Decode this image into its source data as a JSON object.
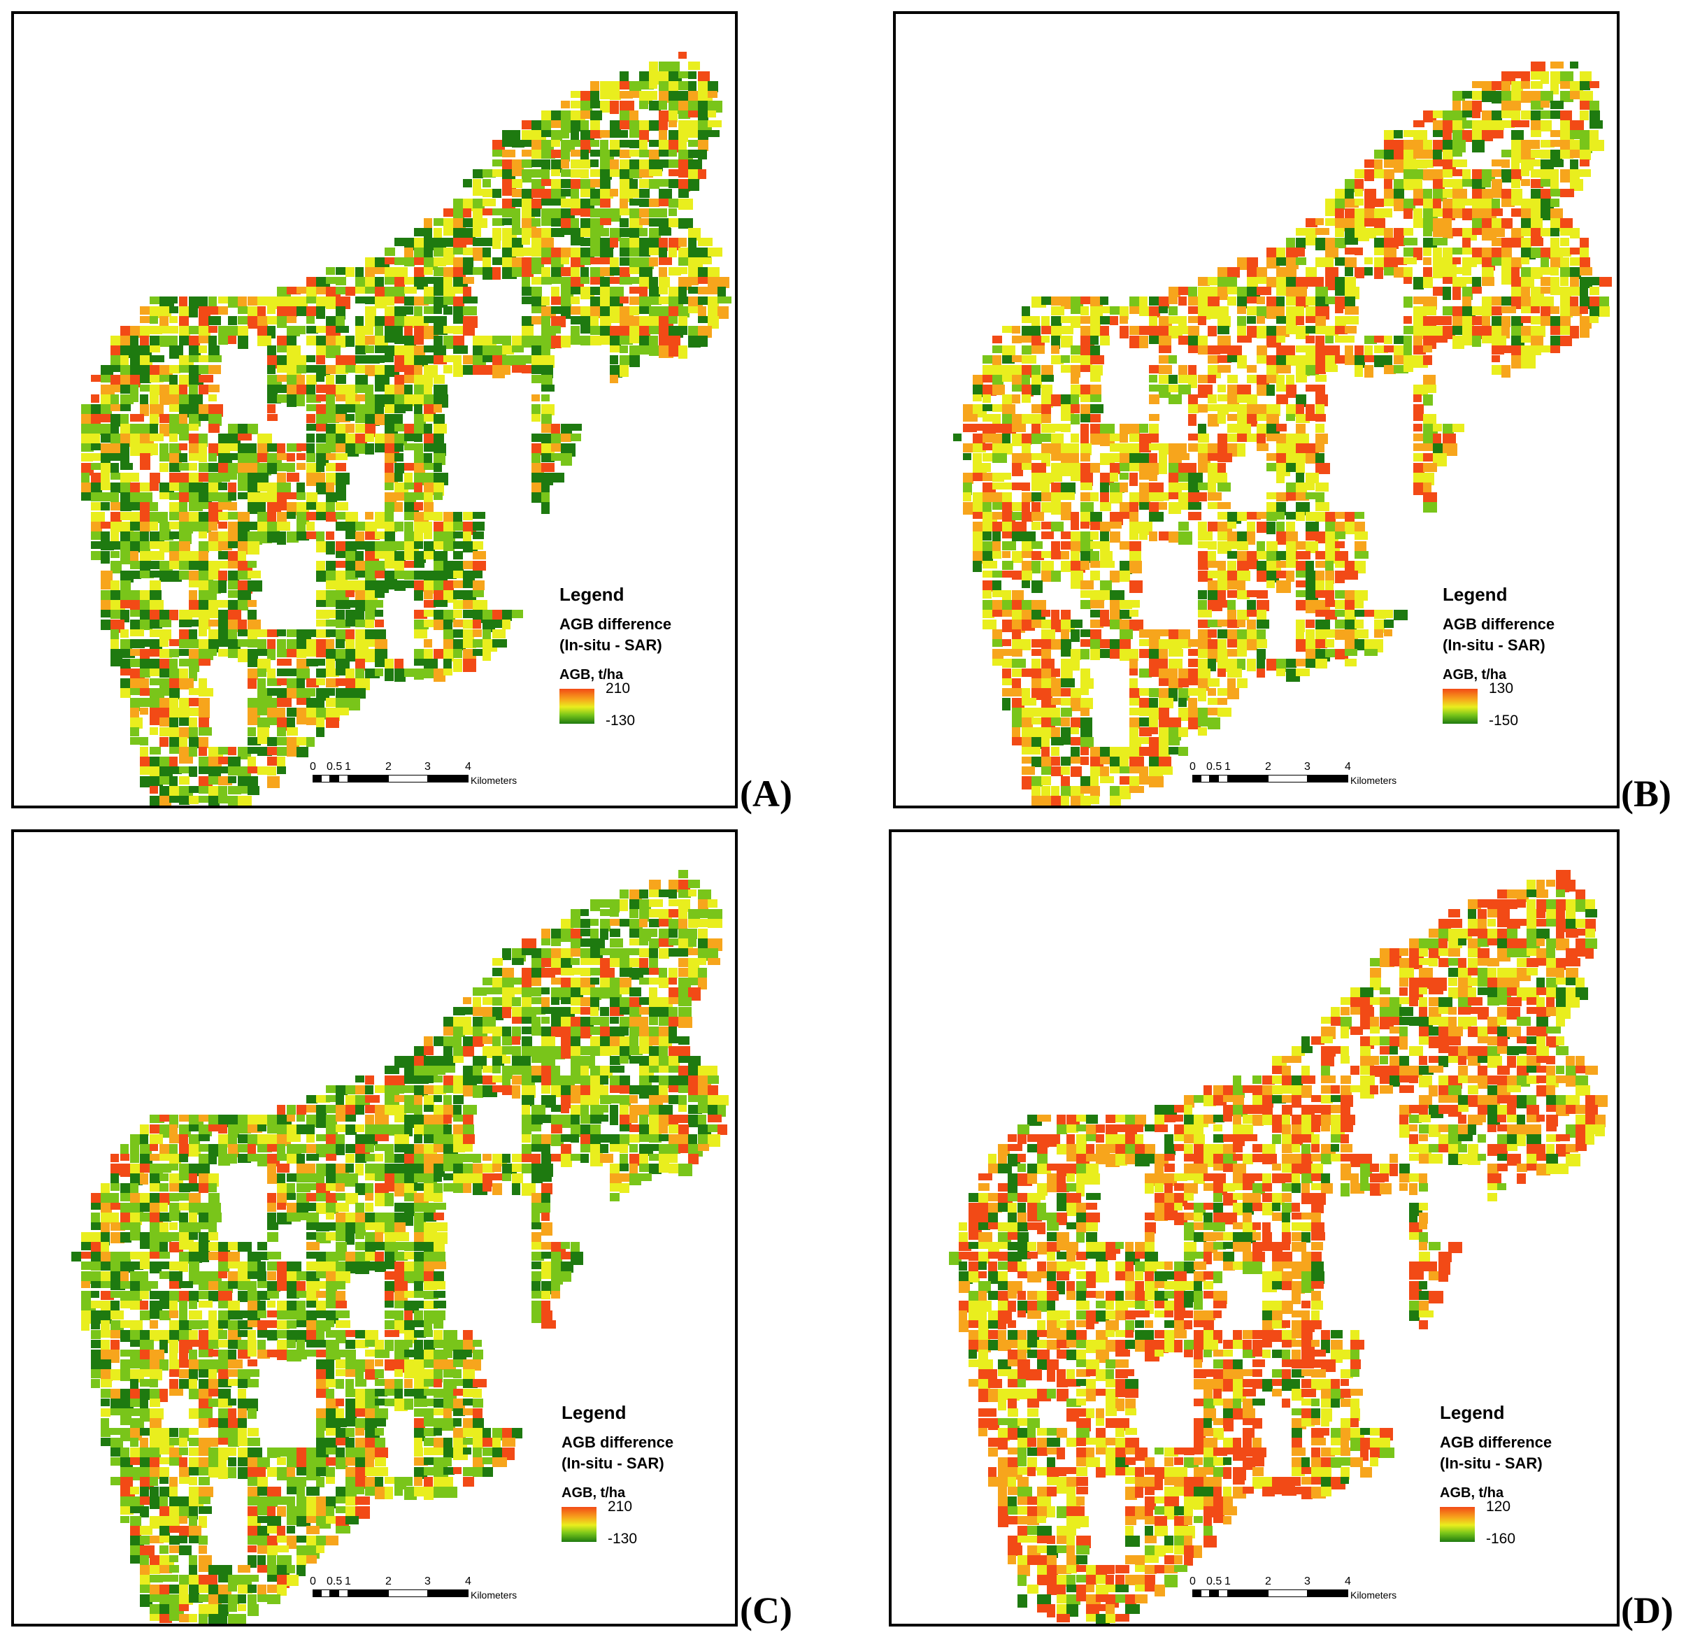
{
  "panels": [
    {
      "label": "(A)",
      "legend": {
        "title": "Legend",
        "line1": "AGB difference",
        "line2": "(In-situ - SAR)",
        "unit": "AGB, t/ha",
        "max": "210",
        "min": "-130"
      }
    },
    {
      "label": "(B)",
      "legend": {
        "title": "Legend",
        "line1": "AGB difference",
        "line2": "(In-situ - SAR)",
        "unit": "AGB, t/ha",
        "max": "130",
        "min": "-150"
      }
    },
    {
      "label": "(C)",
      "legend": {
        "title": "Legend",
        "line1": "AGB difference",
        "line2": "(In-situ - SAR)",
        "unit": "AGB, t/ha",
        "max": "210",
        "min": "-130"
      }
    },
    {
      "label": "(D)",
      "legend": {
        "title": "Legend",
        "line1": "AGB difference",
        "line2": "(In-situ - SAR)",
        "unit": "AGB, t/ha",
        "max": "120",
        "min": "-160"
      }
    }
  ],
  "scalebar": {
    "ticks": [
      "0",
      "0.5",
      "1",
      "2",
      "3",
      "4"
    ],
    "unit": "Kilometers"
  },
  "colors": {
    "high": "#f24a16",
    "mid_high": "#f7a51c",
    "mid": "#e9ee1e",
    "mid_low": "#79c51a",
    "low": "#1e7a10",
    "border": "#000000"
  }
}
